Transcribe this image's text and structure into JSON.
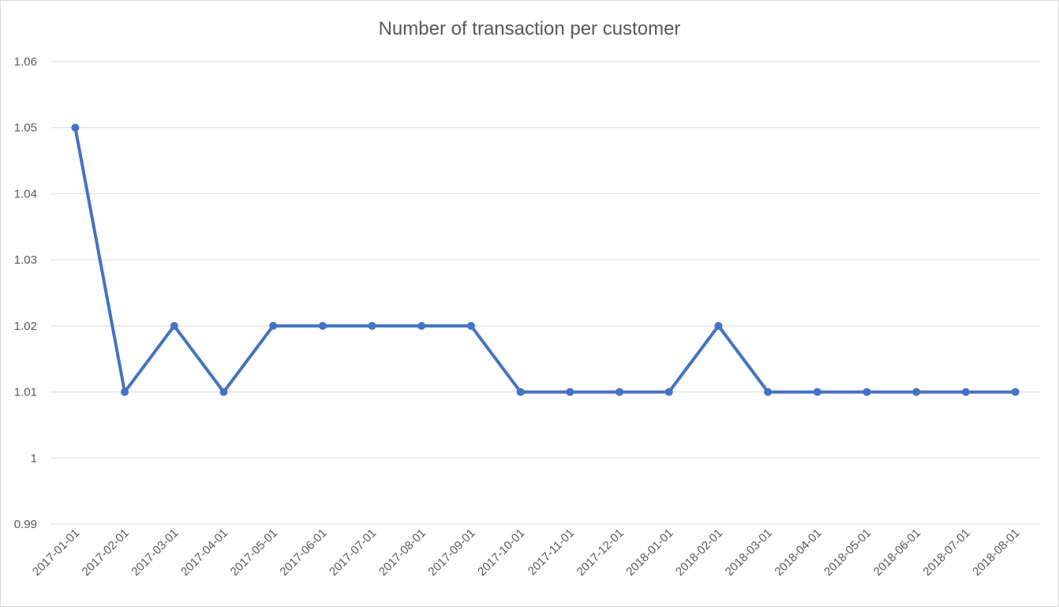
{
  "chart_data": {
    "type": "line",
    "title": "Number of transaction per customer",
    "xlabel": "",
    "ylabel": "",
    "categories": [
      "2017-01-01",
      "2017-02-01",
      "2017-03-01",
      "2017-04-01",
      "2017-05-01",
      "2017-06-01",
      "2017-07-01",
      "2017-08-01",
      "2017-09-01",
      "2017-10-01",
      "2017-11-01",
      "2017-12-01",
      "2018-01-01",
      "2018-02-01",
      "2018-03-01",
      "2018-04-01",
      "2018-05-01",
      "2018-06-01",
      "2018-07-01",
      "2018-08-01"
    ],
    "series": [
      {
        "values": [
          1.05,
          1.01,
          1.02,
          1.01,
          1.02,
          1.02,
          1.02,
          1.02,
          1.02,
          1.01,
          1.01,
          1.01,
          1.01,
          1.02,
          1.01,
          1.01,
          1.01,
          1.01,
          1.01,
          1.01
        ],
        "color": "#4472c4"
      }
    ],
    "ylim": [
      0.99,
      1.06
    ],
    "yticks": [
      "0.99",
      "1",
      "1.01",
      "1.02",
      "1.03",
      "1.04",
      "1.05",
      "1.06"
    ],
    "grid": true,
    "legend": "none"
  }
}
